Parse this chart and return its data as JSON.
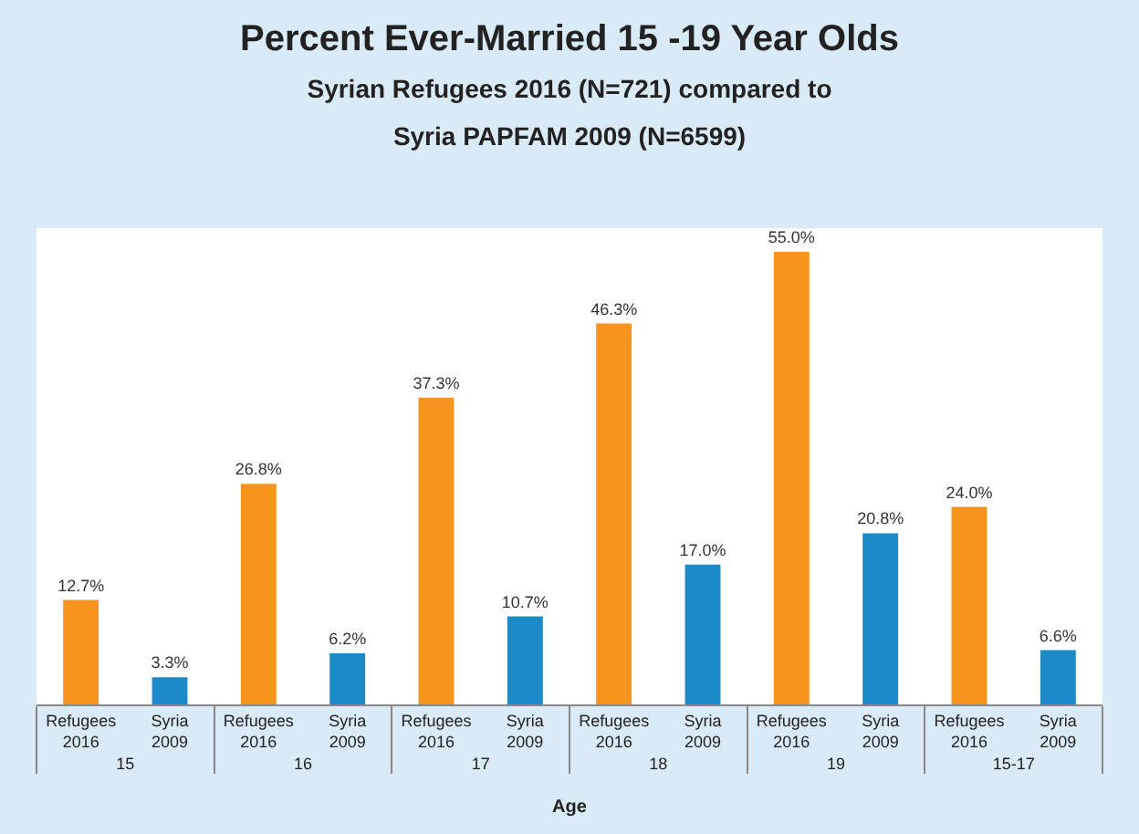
{
  "chart_data": {
    "type": "bar",
    "title": "Percent Ever-Married 15 -19 Year Olds",
    "subtitle": "Syrian Refugees 2016 (N=721) compared to Syria PAPFAM 2009 (N=6599)",
    "xlabel": "Age",
    "categories": [
      "15",
      "16",
      "17",
      "18",
      "19",
      "15-17"
    ],
    "series": [
      {
        "name": "Refugees 2016",
        "color": "#f7941d",
        "values": [
          12.7,
          26.8,
          37.3,
          46.3,
          55.0,
          24.0
        ],
        "value_labels": [
          "12.7%",
          "26.8%",
          "37.3%",
          "46.3%",
          "55.0%",
          "24.0%"
        ]
      },
      {
        "name": "Syria 2009",
        "color": "#1b8ac7",
        "values": [
          3.3,
          6.2,
          10.7,
          17.0,
          20.8,
          6.6
        ],
        "value_labels": [
          "3.3%",
          "6.2%",
          "10.7%",
          "17.0%",
          "20.8%",
          "6.6%"
        ]
      }
    ],
    "legend": false
  }
}
